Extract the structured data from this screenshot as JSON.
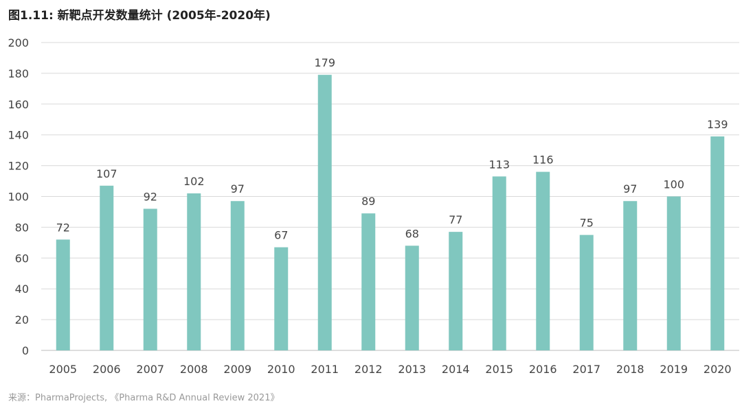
{
  "chart_data": {
    "type": "bar",
    "title": "图1.11: 新靶点开发数量统计 (2005年-2020年)",
    "source": "来源：PharmaProjects, 《Pharma R&D Annual Review 2021》",
    "categories": [
      "2005",
      "2006",
      "2007",
      "2008",
      "2009",
      "2010",
      "2011",
      "2012",
      "2013",
      "2014",
      "2015",
      "2016",
      "2017",
      "2018",
      "2019",
      "2020"
    ],
    "values": [
      72,
      107,
      92,
      102,
      97,
      67,
      179,
      89,
      68,
      77,
      113,
      116,
      75,
      97,
      100,
      139
    ],
    "xlabel": "",
    "ylabel": "",
    "ylim": [
      0,
      200
    ],
    "yticks": [
      0,
      20,
      40,
      60,
      80,
      100,
      120,
      140,
      160,
      180,
      200
    ],
    "grid": true,
    "bar_color": "#80c7bf"
  }
}
